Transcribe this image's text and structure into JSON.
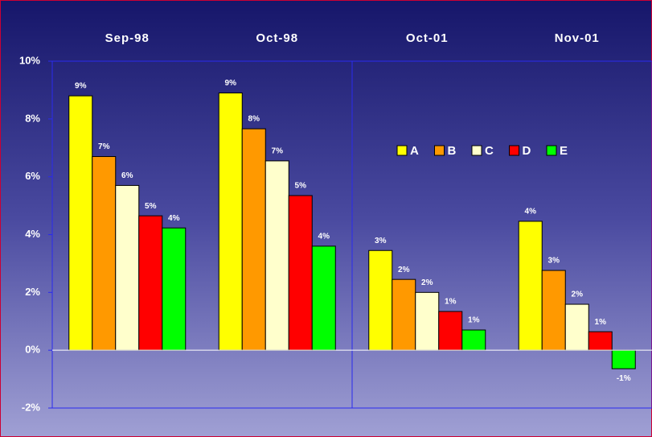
{
  "chart_data": {
    "type": "bar",
    "categories": [
      "Sep-98",
      "Oct-98",
      "Oct-01",
      "Nov-01"
    ],
    "series": [
      {
        "name": "A",
        "color": "#ffff00",
        "values": [
          8.8,
          8.9,
          3.45,
          4.46
        ],
        "value_labels": [
          "9%",
          "9%",
          "3%",
          "4%"
        ]
      },
      {
        "name": "B",
        "color": "#ff9900",
        "values": [
          6.7,
          7.66,
          2.45,
          2.76
        ],
        "value_labels": [
          "7%",
          "8%",
          "2%",
          "3%"
        ]
      },
      {
        "name": "C",
        "color": "#ffffcc",
        "values": [
          5.7,
          6.55,
          2.0,
          1.59
        ],
        "value_labels": [
          "6%",
          "7%",
          "2%",
          "2%"
        ]
      },
      {
        "name": "D",
        "color": "#ff0000",
        "values": [
          4.65,
          5.35,
          1.34,
          0.64
        ],
        "value_labels": [
          "5%",
          "5%",
          "1%",
          "1%"
        ]
      },
      {
        "name": "E",
        "color": "#00ff00",
        "values": [
          4.23,
          3.6,
          0.7,
          -0.64
        ],
        "value_labels": [
          "4%",
          "4%",
          "1%",
          "-1%"
        ]
      }
    ],
    "ylim": [
      -2,
      10
    ],
    "yticks": [
      {
        "value": -2,
        "label": "-2%"
      },
      {
        "value": 0,
        "label": "0%"
      },
      {
        "value": 2,
        "label": "2%"
      },
      {
        "value": 4,
        "label": "4%"
      },
      {
        "value": 6,
        "label": "6%"
      },
      {
        "value": 8,
        "label": "8%"
      },
      {
        "value": 10,
        "label": "10%"
      }
    ]
  }
}
